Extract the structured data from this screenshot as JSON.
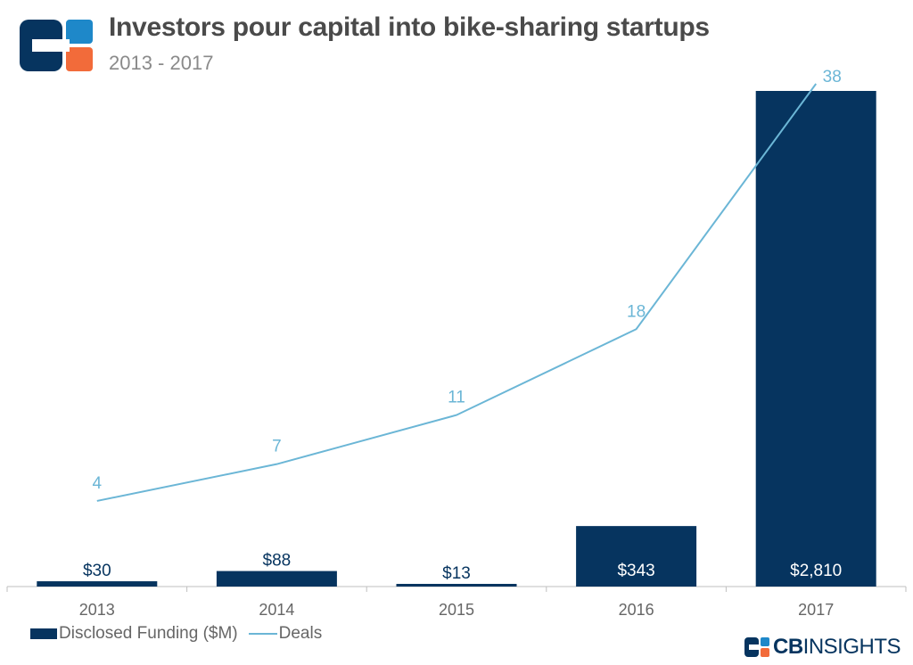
{
  "header": {
    "title": "Investors pour capital into bike-sharing startups",
    "subtitle": "2013 - 2017"
  },
  "brand": {
    "bold": "CB",
    "light": "INSIGHTS"
  },
  "colors": {
    "bar": "#06345f",
    "line": "#6bb6d6",
    "axis": "#bfbfbf",
    "tick_text": "#666666",
    "logo_orange": "#f26b3a",
    "logo_blue": "#1e88c9"
  },
  "chart_data": {
    "type": "bar",
    "categories": [
      "2013",
      "2014",
      "2015",
      "2016",
      "2017"
    ],
    "series": [
      {
        "name": "Disclosed Funding ($M)",
        "type": "bar",
        "values": [
          30,
          88,
          13,
          343,
          2810
        ],
        "labels": [
          "$30",
          "$88",
          "$13",
          "$343",
          "$2,810"
        ]
      },
      {
        "name": "Deals",
        "type": "line",
        "values": [
          4,
          7,
          11,
          18,
          38
        ],
        "labels": [
          "4",
          "7",
          "11",
          "18",
          "38"
        ]
      }
    ],
    "bar_ylim": [
      0,
      2810
    ],
    "line_ylim": [
      0,
      38
    ],
    "legend": "bottom-left",
    "grid": false
  }
}
